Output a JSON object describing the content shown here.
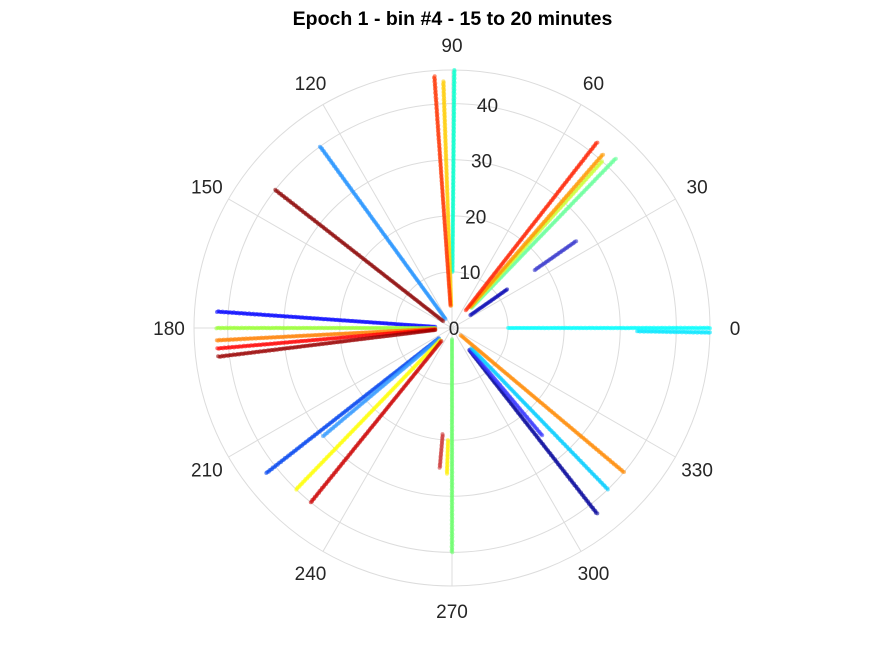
{
  "chart_data": {
    "type": "scatter",
    "coordinate_system": "polar",
    "title": "Epoch 1 - bin #4 - 15 to 20 minutes",
    "theta_ticks_deg": [
      0,
      30,
      60,
      90,
      120,
      150,
      180,
      210,
      240,
      270,
      300,
      330
    ],
    "r_ticks": [
      0,
      10,
      20,
      30,
      40
    ],
    "r_lim": [
      0,
      46
    ],
    "grid": true,
    "series": [
      {
        "color": "#00e5ff",
        "theta_deg": 359,
        "r": [
          33,
          46
        ]
      },
      {
        "color": "#00ffff",
        "theta_deg": 0,
        "r": [
          10,
          46
        ]
      },
      {
        "color": "#0000b0",
        "theta_deg": 35,
        "r": [
          4,
          12
        ]
      },
      {
        "color": "#3333cc",
        "theta_deg": 35,
        "r": [
          18,
          27
        ]
      },
      {
        "color": "#66ff99",
        "theta_deg": 46,
        "r": [
          5,
          42
        ]
      },
      {
        "color": "#ccff33",
        "theta_deg": 48,
        "r": [
          5,
          40
        ]
      },
      {
        "color": "#ff9900",
        "theta_deg": 49,
        "r": [
          5,
          41
        ]
      },
      {
        "color": "#ff2000",
        "theta_deg": 52,
        "r": [
          4,
          42
        ]
      },
      {
        "color": "#00ffcc",
        "theta_deg": 89.5,
        "r": [
          10,
          46
        ]
      },
      {
        "color": "#ffcc00",
        "theta_deg": 92,
        "r": [
          4,
          44
        ]
      },
      {
        "color": "#ff3300",
        "theta_deg": 94,
        "r": [
          4,
          45
        ]
      },
      {
        "color": "#1e90ff",
        "theta_deg": 126,
        "r": [
          2,
          40
        ]
      },
      {
        "color": "#8b0000",
        "theta_deg": 142,
        "r": [
          2,
          40
        ]
      },
      {
        "color": "#0000ff",
        "theta_deg": 176,
        "r": [
          3,
          42
        ]
      },
      {
        "color": "#99ff33",
        "theta_deg": 180,
        "r": [
          3,
          42
        ]
      },
      {
        "color": "#ff8000",
        "theta_deg": 183,
        "r": [
          3,
          42
        ]
      },
      {
        "color": "#ff0000",
        "theta_deg": 185,
        "r": [
          3,
          42
        ]
      },
      {
        "color": "#990000",
        "theta_deg": 187,
        "r": [
          3,
          42
        ]
      },
      {
        "color": "#0044ee",
        "theta_deg": 218,
        "r": [
          3,
          42
        ]
      },
      {
        "color": "#3399ff",
        "theta_deg": 220,
        "r": [
          3,
          30
        ]
      },
      {
        "color": "#ffff00",
        "theta_deg": 226,
        "r": [
          3,
          40
        ]
      },
      {
        "color": "#cc0000",
        "theta_deg": 231,
        "r": [
          3,
          40
        ]
      },
      {
        "color": "#66ff66",
        "theta_deg": 270,
        "r": [
          2,
          40
        ]
      },
      {
        "color": "#ffee00",
        "theta_deg": 268,
        "r": [
          20,
          26
        ]
      },
      {
        "color": "#cc3333",
        "theta_deg": 265,
        "r": [
          19,
          25
        ]
      },
      {
        "color": "#000099",
        "theta_deg": 308,
        "r": [
          5,
          42
        ]
      },
      {
        "color": "#3333ff",
        "theta_deg": 310,
        "r": [
          5,
          25
        ]
      },
      {
        "color": "#00ccff",
        "theta_deg": 314,
        "r": [
          5,
          40
        ]
      },
      {
        "color": "#ff8800",
        "theta_deg": 320,
        "r": [
          2,
          40
        ]
      }
    ]
  }
}
